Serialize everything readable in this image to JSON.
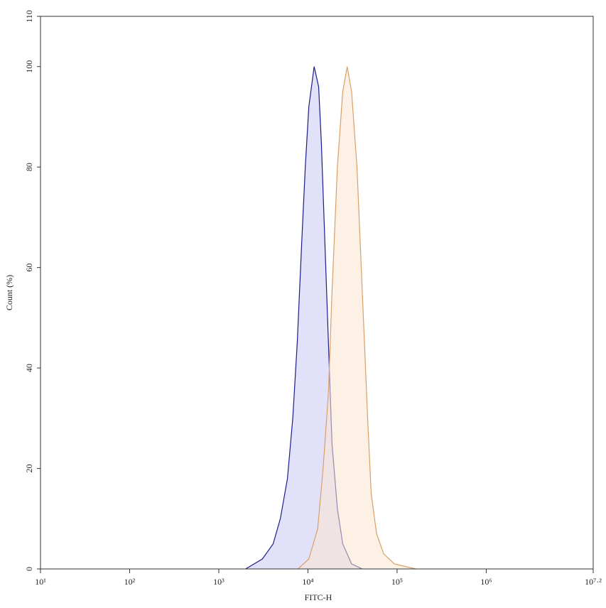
{
  "chart_data": {
    "type": "histogram-overlay",
    "x_label": "FITC-H",
    "y_label": "Count (%)",
    "x_log": true,
    "xlim": [
      10,
      15848932
    ],
    "xticks": [
      {
        "value": 10,
        "label": "10¹"
      },
      {
        "value": 100,
        "label": "10²"
      },
      {
        "value": 1000,
        "label": "10³"
      },
      {
        "value": 10000,
        "label": "10⁴"
      },
      {
        "value": 100000,
        "label": "10⁵"
      },
      {
        "value": 1000000,
        "label": "10⁶"
      },
      {
        "value": 15848932,
        "label": "10⁷·²"
      }
    ],
    "ylim": [
      0,
      110
    ],
    "yticks": [
      0,
      20,
      40,
      60,
      80,
      100,
      110
    ],
    "series": [
      {
        "color": "#1c1c8a",
        "fill": "#c9c9f5",
        "x": [
          2000,
          3090,
          4070,
          4900,
          5890,
          6760,
          7590,
          8510,
          9330,
          10230,
          11750,
          13180,
          14130,
          15490,
          16980,
          18620,
          21380,
          24550,
          30900,
          40740
        ],
        "values": [
          0,
          2,
          5,
          10,
          18,
          30,
          45,
          65,
          80,
          92,
          100,
          96,
          85,
          65,
          45,
          25,
          12,
          5,
          1,
          0
        ]
      },
      {
        "color": "#d8a068",
        "fill": "#fbe6d0",
        "x": [
          7760,
          10230,
          12880,
          14790,
          16980,
          18620,
          21380,
          24550,
          27540,
          30900,
          35480,
          40740,
          46770,
          51290,
          58880,
          70790,
          93330,
          162200
        ],
        "values": [
          0,
          2,
          8,
          20,
          35,
          55,
          80,
          95,
          100,
          95,
          80,
          55,
          30,
          15,
          7,
          3,
          1,
          0
        ]
      }
    ]
  }
}
